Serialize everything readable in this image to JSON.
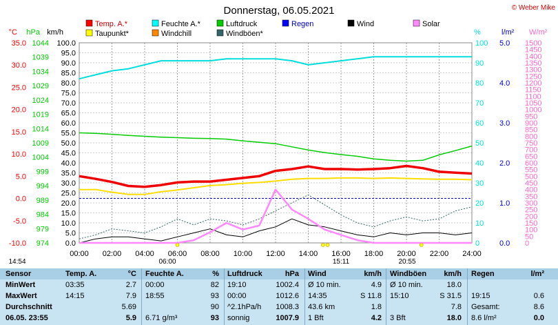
{
  "title": "Donnerstag, 06.05.2021",
  "credit": "© Weber Mike",
  "axes": {
    "temp": {
      "unit": "°C",
      "color": "#ff0000",
      "min": -10,
      "max": 35,
      "step": 5,
      "ticks": [
        "35.0",
        "30.0",
        "25.0",
        "20.0",
        "15.0",
        "10.0",
        "5.0",
        "0.0",
        "-5.0",
        "-10.0"
      ]
    },
    "press": {
      "unit": "hPa",
      "color": "#00cc00",
      "min": 974,
      "max": 1044,
      "step": 5,
      "ticks": [
        "1044",
        "1039",
        "1034",
        "1029",
        "1024",
        "1019",
        "1014",
        "1009",
        "1004",
        "999",
        "994",
        "989",
        "984",
        "979",
        "974"
      ]
    },
    "wind": {
      "unit": "km/h",
      "color": "#000000",
      "min": 0,
      "max": 100,
      "step": 5,
      "ticks": [
        "100.0",
        "95.0",
        "90.0",
        "85.0",
        "80.0",
        "75.0",
        "70.0",
        "65.0",
        "60.0",
        "55.0",
        "50.0",
        "45.0",
        "40.0",
        "35.0",
        "30.0",
        "25.0",
        "20.0",
        "15.0",
        "10.0",
        "5.0",
        "0.0"
      ]
    },
    "hum": {
      "unit": "%",
      "color": "#00dddd",
      "min": 0,
      "max": 100,
      "step": 10,
      "ticks": [
        "100",
        "90",
        "80",
        "70",
        "60",
        "50",
        "40",
        "30",
        "20",
        "10",
        "0"
      ]
    },
    "rain": {
      "unit": "l/m²",
      "color": "#0000cc",
      "min": 0,
      "max": 5,
      "step": 1,
      "ticks": [
        "5.0",
        "4.0",
        "3.0",
        "2.0",
        "1.0",
        "0.0"
      ]
    },
    "solar": {
      "unit": "W/m²",
      "color": "#ff66cc",
      "min": 0,
      "max": 1500,
      "step": 50,
      "ticks": [
        "1500",
        "1450",
        "1400",
        "1350",
        "1300",
        "1250",
        "1200",
        "1150",
        "1100",
        "1050",
        "1000",
        "950",
        "900",
        "850",
        "800",
        "750",
        "700",
        "650",
        "600",
        "550",
        "500",
        "450",
        "400",
        "350",
        "300",
        "250",
        "200",
        "150",
        "100",
        "50",
        "0"
      ]
    }
  },
  "x_ticks": [
    "00:00",
    "02:00",
    "04:00",
    "06:00",
    "08:00",
    "10:00",
    "12:00",
    "14:00",
    "16:00",
    "18:00",
    "20:00",
    "22:00",
    "24:00"
  ],
  "sun_marks": {
    "sunrise": "06:00",
    "sunset": "20:55",
    "moonrise": "14:54",
    "noon": "15:11"
  },
  "legend": [
    {
      "label": "Temp. A.*",
      "color": "#ff0000"
    },
    {
      "label": "Feuchte A.*",
      "color": "#00ffff"
    },
    {
      "label": "Luftdruck",
      "color": "#00cc00"
    },
    {
      "label": "Regen",
      "color": "#0000ff"
    },
    {
      "label": "Wind",
      "color": "#000000"
    },
    {
      "label": "Solar",
      "color": "#ff88ff"
    },
    {
      "label": "Taupunkt*",
      "color": "#ffff00"
    },
    {
      "label": "Windchill",
      "color": "#ff8800"
    },
    {
      "label": "Windböen*",
      "color": "#336666"
    }
  ],
  "chart_data": {
    "type": "line",
    "x_hours": [
      0,
      1,
      2,
      3,
      4,
      5,
      6,
      7,
      8,
      9,
      10,
      11,
      12,
      13,
      14,
      15,
      16,
      17,
      18,
      19,
      20,
      21,
      22,
      23,
      24
    ],
    "series": [
      {
        "name": "Temp. A.*",
        "axis": "temp",
        "values": [
          5.0,
          4.4,
          3.7,
          2.8,
          2.6,
          3.0,
          3.6,
          3.8,
          3.8,
          4.2,
          4.6,
          5.0,
          6.2,
          6.6,
          7.2,
          6.6,
          6.6,
          6.5,
          6.6,
          6.8,
          7.3,
          6.8,
          6.0,
          5.8,
          5.6
        ]
      },
      {
        "name": "Taupunkt*",
        "axis": "temp",
        "values": [
          2.0,
          2.0,
          1.4,
          0.9,
          0.9,
          1.5,
          1.9,
          2.4,
          2.9,
          3.1,
          3.4,
          3.6,
          3.9,
          4.3,
          4.5,
          4.5,
          4.6,
          4.6,
          4.5,
          4.6,
          4.5,
          4.4,
          4.3,
          4.3,
          4.2
        ]
      },
      {
        "name": "Feuchte A.*",
        "axis": "hum",
        "values": [
          82,
          84,
          86,
          87,
          89,
          91,
          91,
          91,
          91,
          92,
          92,
          92,
          92,
          91,
          89,
          90,
          91,
          92,
          93,
          93,
          93,
          93,
          93,
          93,
          93
        ]
      },
      {
        "name": "Luftdruck",
        "axis": "press",
        "values": [
          1012.5,
          1012.3,
          1012.0,
          1011.6,
          1011.3,
          1011.0,
          1010.8,
          1010.6,
          1010.5,
          1010.3,
          1009.7,
          1009.2,
          1008.7,
          1007.6,
          1006.5,
          1005.6,
          1004.9,
          1004.3,
          1003.4,
          1002.9,
          1002.6,
          1002.9,
          1004.8,
          1006.3,
          1007.9
        ]
      },
      {
        "name": "Wind",
        "axis": "wind",
        "values": [
          0,
          2,
          3,
          3,
          2,
          1,
          3,
          5,
          7,
          4,
          3,
          6,
          8,
          12,
          9,
          8,
          6,
          4,
          3,
          5,
          4,
          5,
          5,
          4,
          5
        ]
      },
      {
        "name": "Windböen*",
        "axis": "wind",
        "values": [
          2,
          4,
          7,
          6,
          5,
          8,
          12,
          9,
          12,
          11,
          9,
          12,
          16,
          20,
          24,
          19,
          14,
          10,
          8,
          11,
          13,
          11,
          12,
          16,
          18
        ]
      },
      {
        "name": "Solar",
        "axis": "solar",
        "values": [
          0,
          0,
          0,
          0,
          0,
          0,
          0,
          20,
          80,
          150,
          100,
          130,
          400,
          250,
          180,
          100,
          60,
          20,
          0,
          0,
          0,
          0,
          0,
          0,
          0
        ]
      }
    ]
  },
  "stats": {
    "headers": [
      "Sensor",
      "Temp. A.",
      "°C",
      "Feuchte A.",
      "%",
      "Luftdruck",
      "hPa",
      "Wind",
      "km/h",
      "Windböen",
      "km/h",
      "Regen",
      "l/m²"
    ],
    "rows": [
      {
        "label": "MinWert",
        "t_time": "03:35",
        "t_val": "2.7",
        "h_time": "00:00",
        "h_val": "82",
        "p_time": "19:10",
        "p_val": "1002.4",
        "w_time": "Ø 10 min.",
        "w_val": "4.9",
        "g_time": "Ø 10 min.",
        "g_val": "18.0",
        "r_time": "",
        "r_val": ""
      },
      {
        "label": "MaxWert",
        "t_time": "14:15",
        "t_val": "7.9",
        "h_time": "18:55",
        "h_val": "93",
        "p_time": "00:00",
        "p_val": "1012.6",
        "w_time": "14:35",
        "w_val": "S 11.8",
        "g_time": "15:10",
        "g_val": "S 31.5",
        "r_time": "19:15",
        "r_val": "0.6"
      },
      {
        "label": "Durchschnitt",
        "t_time": "",
        "t_val": "5.69",
        "h_time": "",
        "h_val": "90",
        "p_time": "^2.1hPa/h",
        "p_val": "1008.3",
        "w_time": "43.6 km",
        "w_val": "1.8",
        "g_time": "",
        "g_val": "7.8",
        "r_time": "Gesamt:",
        "r_val": "8.6"
      },
      {
        "label": "06.05. 23:55",
        "t_time": "",
        "t_val": "5.9",
        "h_time": "6.71 g/m³",
        "h_val": "93",
        "p_time": "sonnig",
        "p_val": "1007.9",
        "w_time": "1 Bft",
        "w_val": "4.2",
        "g_time": "3 Bft",
        "g_val": "18.0",
        "r_time": "8.6 l/m²",
        "r_val": "0.0"
      }
    ]
  }
}
